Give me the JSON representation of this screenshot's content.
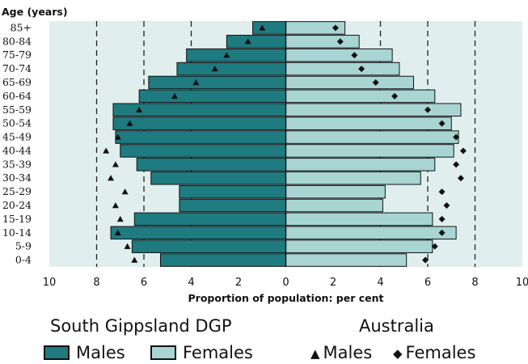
{
  "chart_data": {
    "type": "bar",
    "subtype": "population-pyramid",
    "age_axis_label": "Age (years)",
    "xlabel": "Proportion of population: per cent",
    "xlim": [
      -10,
      10
    ],
    "x_ticks": [
      "10",
      "8",
      "6",
      "4",
      "2",
      "0",
      "2",
      "4",
      "6",
      "8",
      "10"
    ],
    "x_tick_values": [
      -10,
      -8,
      -6,
      -4,
      -2,
      0,
      2,
      4,
      6,
      8,
      10
    ],
    "grid_lines": [
      -8,
      -6,
      -4,
      4,
      6,
      8
    ],
    "grid": "dashed vertical",
    "categories": [
      "85+",
      "80-84",
      "75-79",
      "70-74",
      "65-69",
      "60-64",
      "55-59",
      "50-54",
      "45-49",
      "40-44",
      "35-39",
      "30-34",
      "25-29",
      "20-24",
      "15-19",
      "10-14",
      "5-9",
      "0-4"
    ],
    "series": [
      {
        "name": "Males",
        "group": "South Gippsland DGP",
        "kind": "bar",
        "side": "left",
        "color": "#1e7b80",
        "values": [
          1.4,
          2.5,
          4.2,
          4.6,
          5.8,
          6.2,
          7.3,
          7.3,
          7.2,
          7.0,
          6.3,
          5.7,
          4.5,
          4.5,
          6.4,
          7.4,
          6.5,
          5.3
        ]
      },
      {
        "name": "Females",
        "group": "South Gippsland DGP",
        "kind": "bar",
        "side": "right",
        "color": "#a8d5d4",
        "values": [
          2.5,
          3.1,
          4.5,
          4.8,
          5.4,
          6.3,
          7.4,
          7.0,
          7.3,
          7.1,
          6.3,
          5.7,
          4.2,
          4.1,
          6.2,
          7.2,
          6.2,
          5.1
        ]
      },
      {
        "name": "Males",
        "group": "Australia",
        "kind": "marker",
        "marker": "triangle",
        "side": "left",
        "values": [
          1.0,
          1.6,
          2.5,
          3.0,
          3.8,
          4.7,
          6.2,
          6.6,
          7.1,
          7.6,
          7.2,
          7.4,
          6.8,
          7.2,
          7.0,
          7.1,
          6.7,
          6.4
        ]
      },
      {
        "name": "Females",
        "group": "Australia",
        "kind": "marker",
        "marker": "diamond",
        "side": "right",
        "values": [
          2.1,
          2.3,
          2.9,
          3.2,
          3.8,
          4.6,
          6.0,
          6.6,
          7.2,
          7.5,
          7.2,
          7.4,
          6.6,
          6.8,
          6.6,
          6.6,
          6.3,
          5.9
        ]
      }
    ],
    "legend_position": "bottom"
  },
  "legend": {
    "group_local": "South Gippsland DGP",
    "group_national": "Australia",
    "males_label": "Males",
    "females_label": "Females",
    "triangle_symbol": "▲",
    "diamond_symbol": "◆"
  },
  "colors": {
    "plot_bg": "#e0efed",
    "male_bar": "#1e7b80",
    "female_bar": "#a8d5d4",
    "bar_edge": "#111111",
    "marker": "#111111"
  }
}
